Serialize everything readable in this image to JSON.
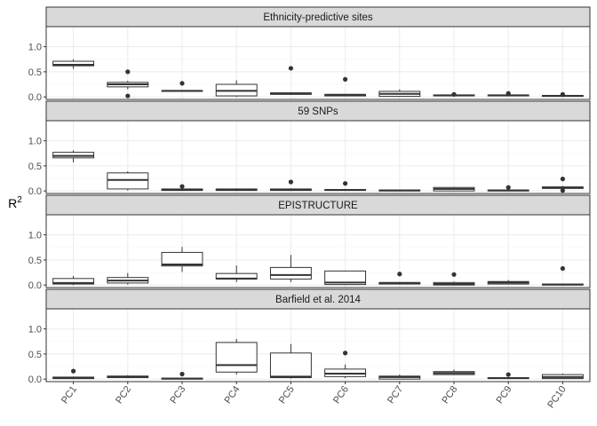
{
  "chart_data": {
    "type": "boxplot",
    "ylabel": "R",
    "ylabel_superscript": "2",
    "categories": [
      "PC1",
      "PC2",
      "PC3",
      "PC4",
      "PC5",
      "PC6",
      "PC7",
      "PC8",
      "PC9",
      "PC10"
    ],
    "ylim": [
      -0.05,
      1.4
    ],
    "yticks": [
      0.0,
      0.5,
      1.0
    ],
    "ytick_labels": [
      "0.0",
      "0.5",
      "1.0"
    ],
    "grid": true,
    "facets": [
      {
        "title": "Ethnicity-predictive sites",
        "boxes": [
          {
            "q1": 0.62,
            "median": 0.64,
            "q3": 0.71,
            "lower": 0.56,
            "upper": 0.75,
            "outliers": []
          },
          {
            "q1": 0.2,
            "median": 0.25,
            "q3": 0.29,
            "lower": 0.15,
            "upper": 0.32,
            "outliers": [
              0.5,
              0.02
            ]
          },
          {
            "q1": 0.11,
            "median": 0.12,
            "q3": 0.12,
            "lower": 0.1,
            "upper": 0.13,
            "outliers": [
              0.27
            ]
          },
          {
            "q1": 0.02,
            "median": 0.12,
            "q3": 0.25,
            "lower": 0.0,
            "upper": 0.33,
            "outliers": []
          },
          {
            "q1": 0.05,
            "median": 0.07,
            "q3": 0.08,
            "lower": 0.04,
            "upper": 0.09,
            "outliers": [
              0.57
            ]
          },
          {
            "q1": 0.02,
            "median": 0.04,
            "q3": 0.05,
            "lower": 0.01,
            "upper": 0.06,
            "outliers": [
              0.35
            ]
          },
          {
            "q1": 0.01,
            "median": 0.06,
            "q3": 0.11,
            "lower": 0.0,
            "upper": 0.15,
            "outliers": []
          },
          {
            "q1": 0.02,
            "median": 0.03,
            "q3": 0.04,
            "lower": 0.01,
            "upper": 0.04,
            "outliers": [
              0.05
            ]
          },
          {
            "q1": 0.02,
            "median": 0.03,
            "q3": 0.04,
            "lower": 0.01,
            "upper": 0.05,
            "outliers": [
              0.07
            ]
          },
          {
            "q1": 0.01,
            "median": 0.02,
            "q3": 0.03,
            "lower": 0.0,
            "upper": 0.04,
            "outliers": [
              0.05
            ]
          }
        ]
      },
      {
        "title": "59 SNPs",
        "boxes": [
          {
            "q1": 0.66,
            "median": 0.7,
            "q3": 0.77,
            "lower": 0.57,
            "upper": 0.81,
            "outliers": []
          },
          {
            "q1": 0.04,
            "median": 0.22,
            "q3": 0.36,
            "lower": 0.01,
            "upper": 0.39,
            "outliers": []
          },
          {
            "q1": 0.01,
            "median": 0.02,
            "q3": 0.04,
            "lower": 0.0,
            "upper": 0.05,
            "outliers": [
              0.09
            ]
          },
          {
            "q1": 0.01,
            "median": 0.03,
            "q3": 0.04,
            "lower": 0.0,
            "upper": 0.05,
            "outliers": []
          },
          {
            "q1": 0.01,
            "median": 0.03,
            "q3": 0.04,
            "lower": 0.0,
            "upper": 0.05,
            "outliers": [
              0.18
            ]
          },
          {
            "q1": 0.01,
            "median": 0.02,
            "q3": 0.03,
            "lower": 0.0,
            "upper": 0.04,
            "outliers": [
              0.15
            ]
          },
          {
            "q1": 0.0,
            "median": 0.01,
            "q3": 0.02,
            "lower": 0.0,
            "upper": 0.03,
            "outliers": []
          },
          {
            "q1": 0.0,
            "median": 0.04,
            "q3": 0.07,
            "lower": 0.0,
            "upper": 0.08,
            "outliers": []
          },
          {
            "q1": 0.0,
            "median": 0.01,
            "q3": 0.02,
            "lower": 0.0,
            "upper": 0.03,
            "outliers": [
              0.07
            ]
          },
          {
            "q1": 0.05,
            "median": 0.07,
            "q3": 0.08,
            "lower": 0.03,
            "upper": 0.1,
            "outliers": [
              0.24,
              0.01
            ]
          }
        ]
      },
      {
        "title": "EPISTRUCTURE",
        "boxes": [
          {
            "q1": 0.02,
            "median": 0.04,
            "q3": 0.13,
            "lower": 0.0,
            "upper": 0.18,
            "outliers": []
          },
          {
            "q1": 0.04,
            "median": 0.09,
            "q3": 0.15,
            "lower": 0.01,
            "upper": 0.24,
            "outliers": []
          },
          {
            "q1": 0.38,
            "median": 0.41,
            "q3": 0.65,
            "lower": 0.26,
            "upper": 0.76,
            "outliers": []
          },
          {
            "q1": 0.12,
            "median": 0.13,
            "q3": 0.23,
            "lower": 0.06,
            "upper": 0.39,
            "outliers": []
          },
          {
            "q1": 0.12,
            "median": 0.2,
            "q3": 0.35,
            "lower": 0.06,
            "upper": 0.6,
            "outliers": []
          },
          {
            "q1": 0.01,
            "median": 0.05,
            "q3": 0.28,
            "lower": 0.0,
            "upper": 0.29,
            "outliers": []
          },
          {
            "q1": 0.02,
            "median": 0.04,
            "q3": 0.05,
            "lower": 0.01,
            "upper": 0.06,
            "outliers": [
              0.22
            ]
          },
          {
            "q1": 0.0,
            "median": 0.02,
            "q3": 0.05,
            "lower": 0.0,
            "upper": 0.07,
            "outliers": [
              0.21
            ]
          },
          {
            "q1": 0.02,
            "median": 0.05,
            "q3": 0.07,
            "lower": 0.01,
            "upper": 0.1,
            "outliers": []
          },
          {
            "q1": 0.0,
            "median": 0.01,
            "q3": 0.02,
            "lower": 0.0,
            "upper": 0.03,
            "outliers": [
              0.33
            ]
          }
        ]
      },
      {
        "title": "Barfield et al. 2014",
        "boxes": [
          {
            "q1": 0.01,
            "median": 0.03,
            "q3": 0.04,
            "lower": 0.0,
            "upper": 0.05,
            "outliers": [
              0.16
            ]
          },
          {
            "q1": 0.03,
            "median": 0.05,
            "q3": 0.06,
            "lower": 0.02,
            "upper": 0.08,
            "outliers": []
          },
          {
            "q1": 0.0,
            "median": 0.01,
            "q3": 0.02,
            "lower": 0.0,
            "upper": 0.03,
            "outliers": [
              0.1
            ]
          },
          {
            "q1": 0.14,
            "median": 0.28,
            "q3": 0.73,
            "lower": 0.09,
            "upper": 0.8,
            "outliers": []
          },
          {
            "q1": 0.03,
            "median": 0.05,
            "q3": 0.52,
            "lower": 0.01,
            "upper": 0.7,
            "outliers": []
          },
          {
            "q1": 0.05,
            "median": 0.11,
            "q3": 0.2,
            "lower": 0.02,
            "upper": 0.29,
            "outliers": [
              0.52
            ]
          },
          {
            "q1": 0.0,
            "median": 0.04,
            "q3": 0.06,
            "lower": 0.0,
            "upper": 0.09,
            "outliers": []
          },
          {
            "q1": 0.09,
            "median": 0.12,
            "q3": 0.15,
            "lower": 0.08,
            "upper": 0.19,
            "outliers": []
          },
          {
            "q1": 0.01,
            "median": 0.02,
            "q3": 0.03,
            "lower": 0.0,
            "upper": 0.04,
            "outliers": [
              0.09
            ]
          },
          {
            "q1": 0.01,
            "median": 0.04,
            "q3": 0.09,
            "lower": 0.0,
            "upper": 0.11,
            "outliers": []
          }
        ]
      }
    ]
  },
  "colors": {
    "panel_background": "#ffffff",
    "panel_border": "#333333",
    "strip_fill": "#d9d9d9",
    "grid_major": "#ebebeb",
    "grid_minor": "#f5f5f5",
    "box_stroke": "#333333",
    "box_fill": "#ffffff",
    "outlier": "#333333",
    "axis_text": "#4d4d4d",
    "strip_text": "#1a1a1a",
    "axis_title": "#000000"
  }
}
